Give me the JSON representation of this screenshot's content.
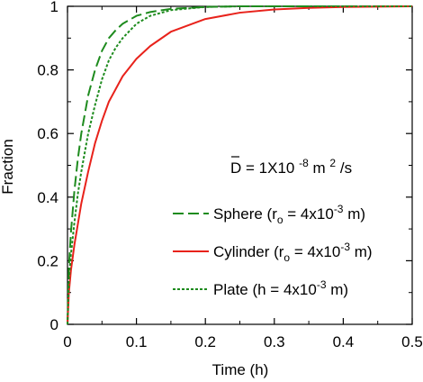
{
  "chart_data": {
    "type": "line",
    "title": "",
    "xlabel": "Time (h)",
    "ylabel": "Fraction",
    "xlim": [
      0,
      0.5
    ],
    "ylim": [
      0,
      1
    ],
    "xticks": [
      0,
      0.1,
      0.2,
      0.3,
      0.4,
      0.5
    ],
    "xtick_labels": [
      "0",
      "0.1",
      "0.2",
      "0.3",
      "0.4",
      "0.5"
    ],
    "yticks": [
      0,
      0.2,
      0.4,
      0.6,
      0.8,
      1
    ],
    "ytick_labels": [
      "0",
      "0.2",
      "0.4",
      "0.6",
      "0.8",
      "1"
    ],
    "grid": false,
    "legend_position": "center-right",
    "annotation": {
      "prefix": "D",
      "equals": " = 1X10",
      "exp": "-8",
      "unit_m": "m",
      "unit_exp": "2",
      "unit_rest": "/s"
    },
    "series": [
      {
        "name": "Sphere (ro = 4x10-3 m)",
        "legend": {
          "pre": "Sphere (r",
          "sub": "o",
          "mid": " = 4x10",
          "sup": "-3",
          "post": " m)"
        },
        "color": "#1e8b1e",
        "style": "long-dash",
        "x": [
          0,
          0.002,
          0.005,
          0.01,
          0.015,
          0.02,
          0.03,
          0.04,
          0.05,
          0.06,
          0.07,
          0.08,
          0.1,
          0.12,
          0.15,
          0.2,
          0.25,
          0.3,
          0.4,
          0.5
        ],
        "y": [
          0,
          0.18,
          0.29,
          0.42,
          0.52,
          0.6,
          0.72,
          0.8,
          0.86,
          0.9,
          0.925,
          0.945,
          0.97,
          0.982,
          0.992,
          0.998,
          1.0,
          1.0,
          1.0,
          1.0
        ]
      },
      {
        "name": "Cylinder (ro = 4x10-3 m)",
        "legend": {
          "pre": "Cylinder (r",
          "sub": "o",
          "mid": " = 4x10",
          "sup": "-3",
          "post": " m)"
        },
        "color": "#e8221b",
        "style": "solid",
        "x": [
          0,
          0.002,
          0.005,
          0.01,
          0.02,
          0.03,
          0.04,
          0.05,
          0.06,
          0.08,
          0.1,
          0.12,
          0.15,
          0.2,
          0.25,
          0.3,
          0.35,
          0.4,
          0.45,
          0.5
        ],
        "y": [
          0,
          0.1,
          0.17,
          0.25,
          0.38,
          0.48,
          0.57,
          0.64,
          0.7,
          0.78,
          0.835,
          0.875,
          0.92,
          0.96,
          0.98,
          0.99,
          0.995,
          0.998,
          0.999,
          1.0
        ]
      },
      {
        "name": "Plate (h = 4x10-3 m)",
        "legend": {
          "pre": "Plate (h = 4x10",
          "sub": "",
          "mid": "",
          "sup": "-3",
          "post": " m)"
        },
        "color": "#1e8b1e",
        "style": "dotted",
        "x": [
          0,
          0.002,
          0.005,
          0.01,
          0.015,
          0.02,
          0.03,
          0.04,
          0.05,
          0.06,
          0.07,
          0.08,
          0.1,
          0.12,
          0.15,
          0.2,
          0.25,
          0.3,
          0.4,
          0.5
        ],
        "y": [
          0,
          0.14,
          0.22,
          0.32,
          0.41,
          0.48,
          0.6,
          0.69,
          0.77,
          0.83,
          0.87,
          0.9,
          0.945,
          0.97,
          0.988,
          0.998,
          1.0,
          1.0,
          1.0,
          1.0
        ]
      }
    ]
  }
}
